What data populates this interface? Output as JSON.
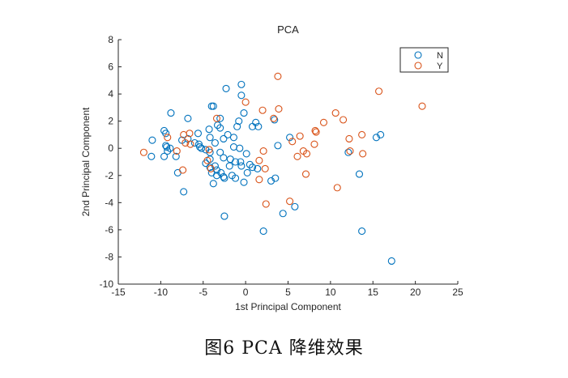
{
  "caption": "图6 PCA 降维效果",
  "chart_data": {
    "type": "scatter",
    "title": "PCA",
    "xlabel": "1st Principal Component",
    "ylabel": "2nd Principal Component",
    "xlim": [
      -15,
      25
    ],
    "ylim": [
      -10,
      8
    ],
    "xticks": [
      -15,
      -10,
      -5,
      0,
      5,
      10,
      15,
      20,
      25
    ],
    "yticks": [
      -10,
      -8,
      -6,
      -4,
      -2,
      0,
      2,
      4,
      6,
      8
    ],
    "grid": false,
    "legend_position": "top-right",
    "series": [
      {
        "name": "N",
        "color": "#0072BD",
        "marker": "circle-open",
        "points": [
          [
            -0.5,
            4.7
          ],
          [
            -2.3,
            4.4
          ],
          [
            -0.5,
            3.9
          ],
          [
            -4.0,
            3.1
          ],
          [
            -3.8,
            3.1
          ],
          [
            -8.8,
            2.6
          ],
          [
            -0.2,
            2.6
          ],
          [
            -6.8,
            2.2
          ],
          [
            -3.0,
            2.2
          ],
          [
            -0.8,
            2.0
          ],
          [
            1.2,
            1.9
          ],
          [
            3.4,
            2.1
          ],
          [
            -3.3,
            1.7
          ],
          [
            -1.0,
            1.6
          ],
          [
            -3.0,
            1.5
          ],
          [
            -4.3,
            1.4
          ],
          [
            0.8,
            1.6
          ],
          [
            1.5,
            1.6
          ],
          [
            -9.6,
            1.3
          ],
          [
            -9.4,
            1.1
          ],
          [
            -5.6,
            1.1
          ],
          [
            -2.1,
            1.0
          ],
          [
            -1.4,
            0.8
          ],
          [
            -4.2,
            0.8
          ],
          [
            -6.8,
            0.7
          ],
          [
            -2.6,
            0.7
          ],
          [
            -11.0,
            0.6
          ],
          [
            -7.5,
            0.6
          ],
          [
            -6.0,
            0.4
          ],
          [
            -3.6,
            0.4
          ],
          [
            -5.5,
            0.3
          ],
          [
            -9.4,
            0.2
          ],
          [
            -9.3,
            0.1
          ],
          [
            -5.4,
            0.1
          ],
          [
            -1.4,
            0.1
          ],
          [
            -0.7,
            0.0
          ],
          [
            -8.9,
            0.0
          ],
          [
            -5.2,
            0.0
          ],
          [
            -4.7,
            -0.1
          ],
          [
            -9.2,
            -0.2
          ],
          [
            -4.2,
            -0.3
          ],
          [
            -3.0,
            -0.3
          ],
          [
            -11.1,
            -0.6
          ],
          [
            -9.6,
            -0.6
          ],
          [
            -8.2,
            -0.6
          ],
          [
            -4.2,
            -0.8
          ],
          [
            -2.6,
            -0.7
          ],
          [
            -1.8,
            -0.8
          ],
          [
            -1.2,
            -1.0
          ],
          [
            -0.6,
            -1.0
          ],
          [
            0.1,
            -0.4
          ],
          [
            -1.9,
            -1.3
          ],
          [
            -4.2,
            -1.4
          ],
          [
            -3.6,
            -1.3
          ],
          [
            -4.7,
            -1.1
          ],
          [
            -0.5,
            -1.3
          ],
          [
            0.5,
            -1.2
          ],
          [
            0.8,
            -1.4
          ],
          [
            1.4,
            -1.5
          ],
          [
            -3.4,
            -1.6
          ],
          [
            -2.9,
            -1.8
          ],
          [
            -4.0,
            -1.8
          ],
          [
            -3.4,
            -2.0
          ],
          [
            -2.5,
            -2.2
          ],
          [
            -8.0,
            -1.8
          ],
          [
            -1.6,
            -2.0
          ],
          [
            0.2,
            -1.8
          ],
          [
            -2.6,
            -2.1
          ],
          [
            -1.2,
            -2.2
          ],
          [
            -3.8,
            -2.6
          ],
          [
            -0.2,
            -2.5
          ],
          [
            3.0,
            -2.4
          ],
          [
            3.5,
            -2.2
          ],
          [
            -7.3,
            -3.2
          ],
          [
            -2.5,
            -5.0
          ],
          [
            2.1,
            -6.1
          ],
          [
            4.4,
            -4.8
          ],
          [
            5.8,
            -4.3
          ],
          [
            5.2,
            0.8
          ],
          [
            12.1,
            -0.3
          ],
          [
            15.4,
            0.8
          ],
          [
            15.9,
            1.0
          ],
          [
            13.4,
            -1.9
          ],
          [
            13.7,
            -6.1
          ],
          [
            17.2,
            -8.3
          ],
          [
            3.8,
            0.2
          ]
        ]
      },
      {
        "name": "Y",
        "color": "#D95319",
        "marker": "circle-open",
        "points": [
          [
            3.8,
            5.3
          ],
          [
            15.7,
            4.2
          ],
          [
            20.8,
            3.1
          ],
          [
            0.0,
            3.4
          ],
          [
            2.0,
            2.8
          ],
          [
            3.9,
            2.9
          ],
          [
            10.6,
            2.6
          ],
          [
            11.5,
            2.1
          ],
          [
            3.3,
            2.2
          ],
          [
            9.2,
            1.9
          ],
          [
            -3.4,
            2.2
          ],
          [
            8.2,
            1.3
          ],
          [
            8.3,
            1.2
          ],
          [
            13.7,
            1.0
          ],
          [
            12.2,
            0.7
          ],
          [
            -7.3,
            1.0
          ],
          [
            -6.6,
            1.1
          ],
          [
            -9.2,
            0.8
          ],
          [
            6.4,
            0.9
          ],
          [
            -7.1,
            0.4
          ],
          [
            -6.5,
            0.3
          ],
          [
            5.5,
            0.5
          ],
          [
            8.1,
            0.3
          ],
          [
            -8.1,
            -0.2
          ],
          [
            2.1,
            -0.2
          ],
          [
            -4.3,
            -0.1
          ],
          [
            -12.0,
            -0.3
          ],
          [
            6.8,
            -0.2
          ],
          [
            7.2,
            -0.4
          ],
          [
            13.8,
            -0.4
          ],
          [
            12.3,
            -0.2
          ],
          [
            6.1,
            -0.6
          ],
          [
            1.6,
            -0.9
          ],
          [
            -4.5,
            -0.9
          ],
          [
            -4.1,
            -1.5
          ],
          [
            -7.4,
            -1.6
          ],
          [
            2.3,
            -1.5
          ],
          [
            7.1,
            -1.9
          ],
          [
            1.6,
            -2.3
          ],
          [
            10.8,
            -2.9
          ],
          [
            2.4,
            -4.1
          ],
          [
            5.2,
            -3.9
          ]
        ]
      }
    ]
  }
}
